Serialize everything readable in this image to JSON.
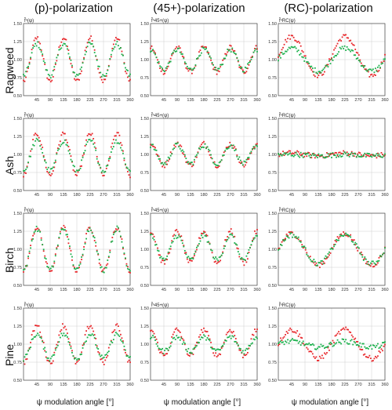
{
  "chart_data": {
    "type": "scatter",
    "layout": "4 rows x 3 columns of panels",
    "column_titles": [
      "(p)-polarization",
      "(45+)-polarization",
      "(RC)-polarization"
    ],
    "row_labels": [
      "Ragweed",
      "Ash",
      "Birch",
      "Pine"
    ],
    "panel_ylabels": [
      "f̂ⁿ(ψ)",
      "f̂ⁿ45+(ψ)",
      "f̂ⁿRC(ψ)"
    ],
    "xlabel": "ψ modulation angle [°]",
    "xlim": [
      0,
      360
    ],
    "ylim": [
      0.5,
      1.5
    ],
    "xticks": [
      "45",
      "90",
      "135",
      "180",
      "225",
      "270",
      "315",
      "360"
    ],
    "yticks": [
      "0.50",
      "0.75",
      "1.00",
      "1.25",
      "1.50"
    ],
    "grid": true,
    "series_colors": [
      "#e8262a",
      "#19b04b"
    ],
    "panels": [
      [
        {
          "series": [
            {
              "mean": 1.0,
              "amp": 0.3,
              "freq": 4,
              "phase": 45
            },
            {
              "mean": 1.0,
              "amp": 0.22,
              "freq": 4,
              "phase": 45
            }
          ]
        },
        {
          "series": [
            {
              "mean": 1.0,
              "amp": 0.17,
              "freq": 4,
              "phase": 0
            },
            {
              "mean": 1.0,
              "amp": 0.14,
              "freq": 4,
              "phase": 0
            }
          ]
        },
        {
          "series": [
            {
              "mean": 1.05,
              "amp": 0.27,
              "freq": 2,
              "phase": 45
            },
            {
              "mean": 1.0,
              "amp": 0.16,
              "freq": 2,
              "phase": 45
            }
          ]
        }
      ],
      [
        {
          "series": [
            {
              "mean": 1.0,
              "amp": 0.29,
              "freq": 4,
              "phase": 45
            },
            {
              "mean": 0.98,
              "amp": 0.21,
              "freq": 4,
              "phase": 45
            }
          ]
        },
        {
          "series": [
            {
              "mean": 1.0,
              "amp": 0.15,
              "freq": 4,
              "phase": 0
            },
            {
              "mean": 1.0,
              "amp": 0.13,
              "freq": 4,
              "phase": 0
            }
          ]
        },
        {
          "series": [
            {
              "mean": 1.0,
              "amp": 0.02,
              "freq": 2,
              "phase": 45
            },
            {
              "mean": 0.99,
              "amp": 0.01,
              "freq": 2,
              "phase": 45
            }
          ]
        }
      ],
      [
        {
          "series": [
            {
              "mean": 1.0,
              "amp": 0.3,
              "freq": 4,
              "phase": 45
            },
            {
              "mean": 1.0,
              "amp": 0.29,
              "freq": 4,
              "phase": 45
            }
          ]
        },
        {
          "series": [
            {
              "mean": 1.03,
              "amp": 0.22,
              "freq": 4,
              "phase": 0
            },
            {
              "mean": 1.02,
              "amp": 0.17,
              "freq": 4,
              "phase": 0
            }
          ]
        },
        {
          "series": [
            {
              "mean": 1.0,
              "amp": 0.22,
              "freq": 2,
              "phase": 45
            },
            {
              "mean": 1.0,
              "amp": 0.2,
              "freq": 2,
              "phase": 45
            }
          ]
        }
      ],
      [
        {
          "series": [
            {
              "mean": 1.0,
              "amp": 0.26,
              "freq": 4,
              "phase": 45
            },
            {
              "mean": 0.97,
              "amp": 0.17,
              "freq": 4,
              "phase": 45
            }
          ]
        },
        {
          "series": [
            {
              "mean": 1.02,
              "amp": 0.18,
              "freq": 4,
              "phase": 0
            },
            {
              "mean": 1.0,
              "amp": 0.1,
              "freq": 4,
              "phase": 0
            }
          ]
        },
        {
          "series": [
            {
              "mean": 1.0,
              "amp": 0.2,
              "freq": 2,
              "phase": 45
            },
            {
              "mean": 1.0,
              "amp": 0.04,
              "freq": 2,
              "phase": 45
            }
          ]
        }
      ]
    ]
  }
}
